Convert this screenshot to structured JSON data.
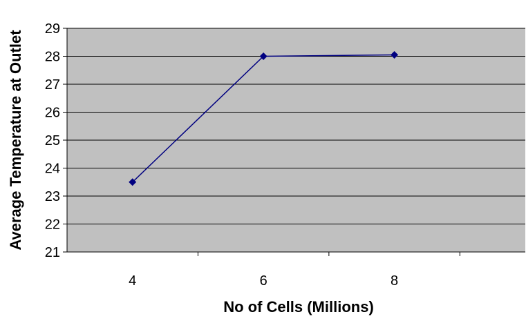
{
  "chart_data": {
    "type": "line",
    "title": "",
    "xlabel": "No of Cells (Millions)",
    "ylabel": "Average Temperature at Outlet",
    "x_categories": [
      "4",
      "6",
      "8"
    ],
    "x": [
      4,
      6,
      8
    ],
    "series": [
      {
        "values": [
          23.5,
          28.0,
          28.05
        ]
      }
    ],
    "ylim": [
      21,
      29
    ],
    "yticks": [
      21,
      22,
      23,
      24,
      25,
      26,
      27,
      28,
      29
    ],
    "grid": true,
    "legend": "none",
    "colors": {
      "plot_background": "#c0c0c0",
      "series_line": "#000080",
      "gridline": "#000000"
    }
  }
}
